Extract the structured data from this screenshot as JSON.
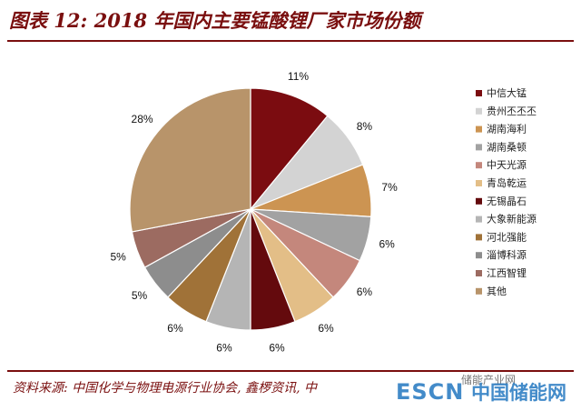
{
  "title": "图表 12: 2018 年国内主要锰酸锂厂家市场份额",
  "source": "资料来源: 中国化学与物理电源行业协会, 鑫椤资讯, 中",
  "watermark": {
    "brand": "ESCN",
    "site": "中国储能网",
    "wechat": "储能产业网"
  },
  "chart_data": {
    "type": "pie",
    "title": "",
    "legend_position": "right",
    "slices": [
      {
        "name": "中信大锰",
        "value": 11,
        "label": "11%",
        "color": "#7b0c10"
      },
      {
        "name": "贵州丕丕丕",
        "value": 8,
        "label": "8%",
        "color": "#d3d3d3"
      },
      {
        "name": "湖南海利",
        "value": 7,
        "label": "7%",
        "color": "#cc9452"
      },
      {
        "name": "湖南桑顿",
        "value": 6,
        "label": "6%",
        "color": "#a2a2a2"
      },
      {
        "name": "中天光源",
        "value": 6,
        "label": "6%",
        "color": "#c4877c"
      },
      {
        "name": "青岛乾运",
        "value": 6,
        "label": "6%",
        "color": "#e3be87"
      },
      {
        "name": "无锡晶石",
        "value": 6,
        "label": "6%",
        "color": "#640a0d"
      },
      {
        "name": "大象新能源",
        "value": 6,
        "label": "6%",
        "color": "#b5b5b5"
      },
      {
        "name": "河北强能",
        "value": 6,
        "label": "6%",
        "color": "#a07238"
      },
      {
        "name": "淄博科源",
        "value": 5,
        "label": "5%",
        "color": "#8d8d8d"
      },
      {
        "name": "江西智锂",
        "value": 5,
        "label": "5%",
        "color": "#9c6b61"
      },
      {
        "name": "其他",
        "value": 28,
        "label": "28%",
        "color": "#b8946a"
      }
    ]
  }
}
